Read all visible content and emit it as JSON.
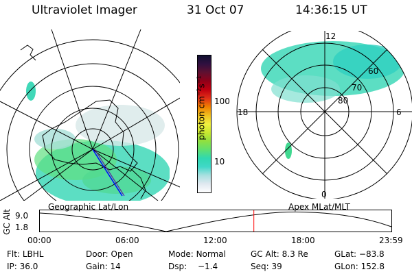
{
  "header": {
    "title": "Ultraviolet Imager",
    "date": "31 Oct 07",
    "time": "14:36:15 UT"
  },
  "left_map": {
    "caption": "Geographic Lat/Lon"
  },
  "right_map": {
    "caption": "Apex MLat/MLT",
    "mlt_labels": {
      "top": "12",
      "left": "18",
      "right": "6",
      "bottom": "0"
    },
    "lat_labels": [
      "60",
      "70",
      "80"
    ]
  },
  "colorbar": {
    "unit": "photon cm",
    "unit_sup1": "−2",
    "unit_mid": "s",
    "unit_sup2": "−1",
    "ticks": [
      "100",
      "10"
    ],
    "colors": [
      "#ffffff",
      "#e0e8f0",
      "#a8e0e0",
      "#40d8c8",
      "#30d8b0",
      "#60e070",
      "#90e040",
      "#c8e830",
      "#f0f040",
      "#f0c020",
      "#f08000",
      "#e03018",
      "#c00010",
      "#900018",
      "#601030",
      "#301040",
      "#101030"
    ]
  },
  "altitude_panel": {
    "y_label": "GC Alt",
    "y_ticks": [
      "9.0",
      "1.8"
    ],
    "x_ticks": [
      "00:00",
      "06:00",
      "12:00",
      "18:00",
      "23:59"
    ],
    "current_marker_time": "14:36",
    "marker_color": "#ff0000"
  },
  "status": {
    "flt_label": "Flt:",
    "flt_value": "LBHL",
    "door_label": "Door:",
    "door_value": "Open",
    "mode_label": "Mode:",
    "mode_value": "Normal",
    "gcalt_label": "GC Alt:",
    "gcalt_value": "8.3 Re",
    "glat_label": "GLat:",
    "glat_value": "−83.8",
    "ip_label": "IP:",
    "ip_value": "36.0",
    "gain_label": "Gain:",
    "gain_value": "14",
    "dsp_label": "Dsp:",
    "dsp_value": "−1.4",
    "seq_label": "Seq:",
    "seq_value": "39",
    "glon_label": "GLon:",
    "glon_value": "152.8"
  }
}
